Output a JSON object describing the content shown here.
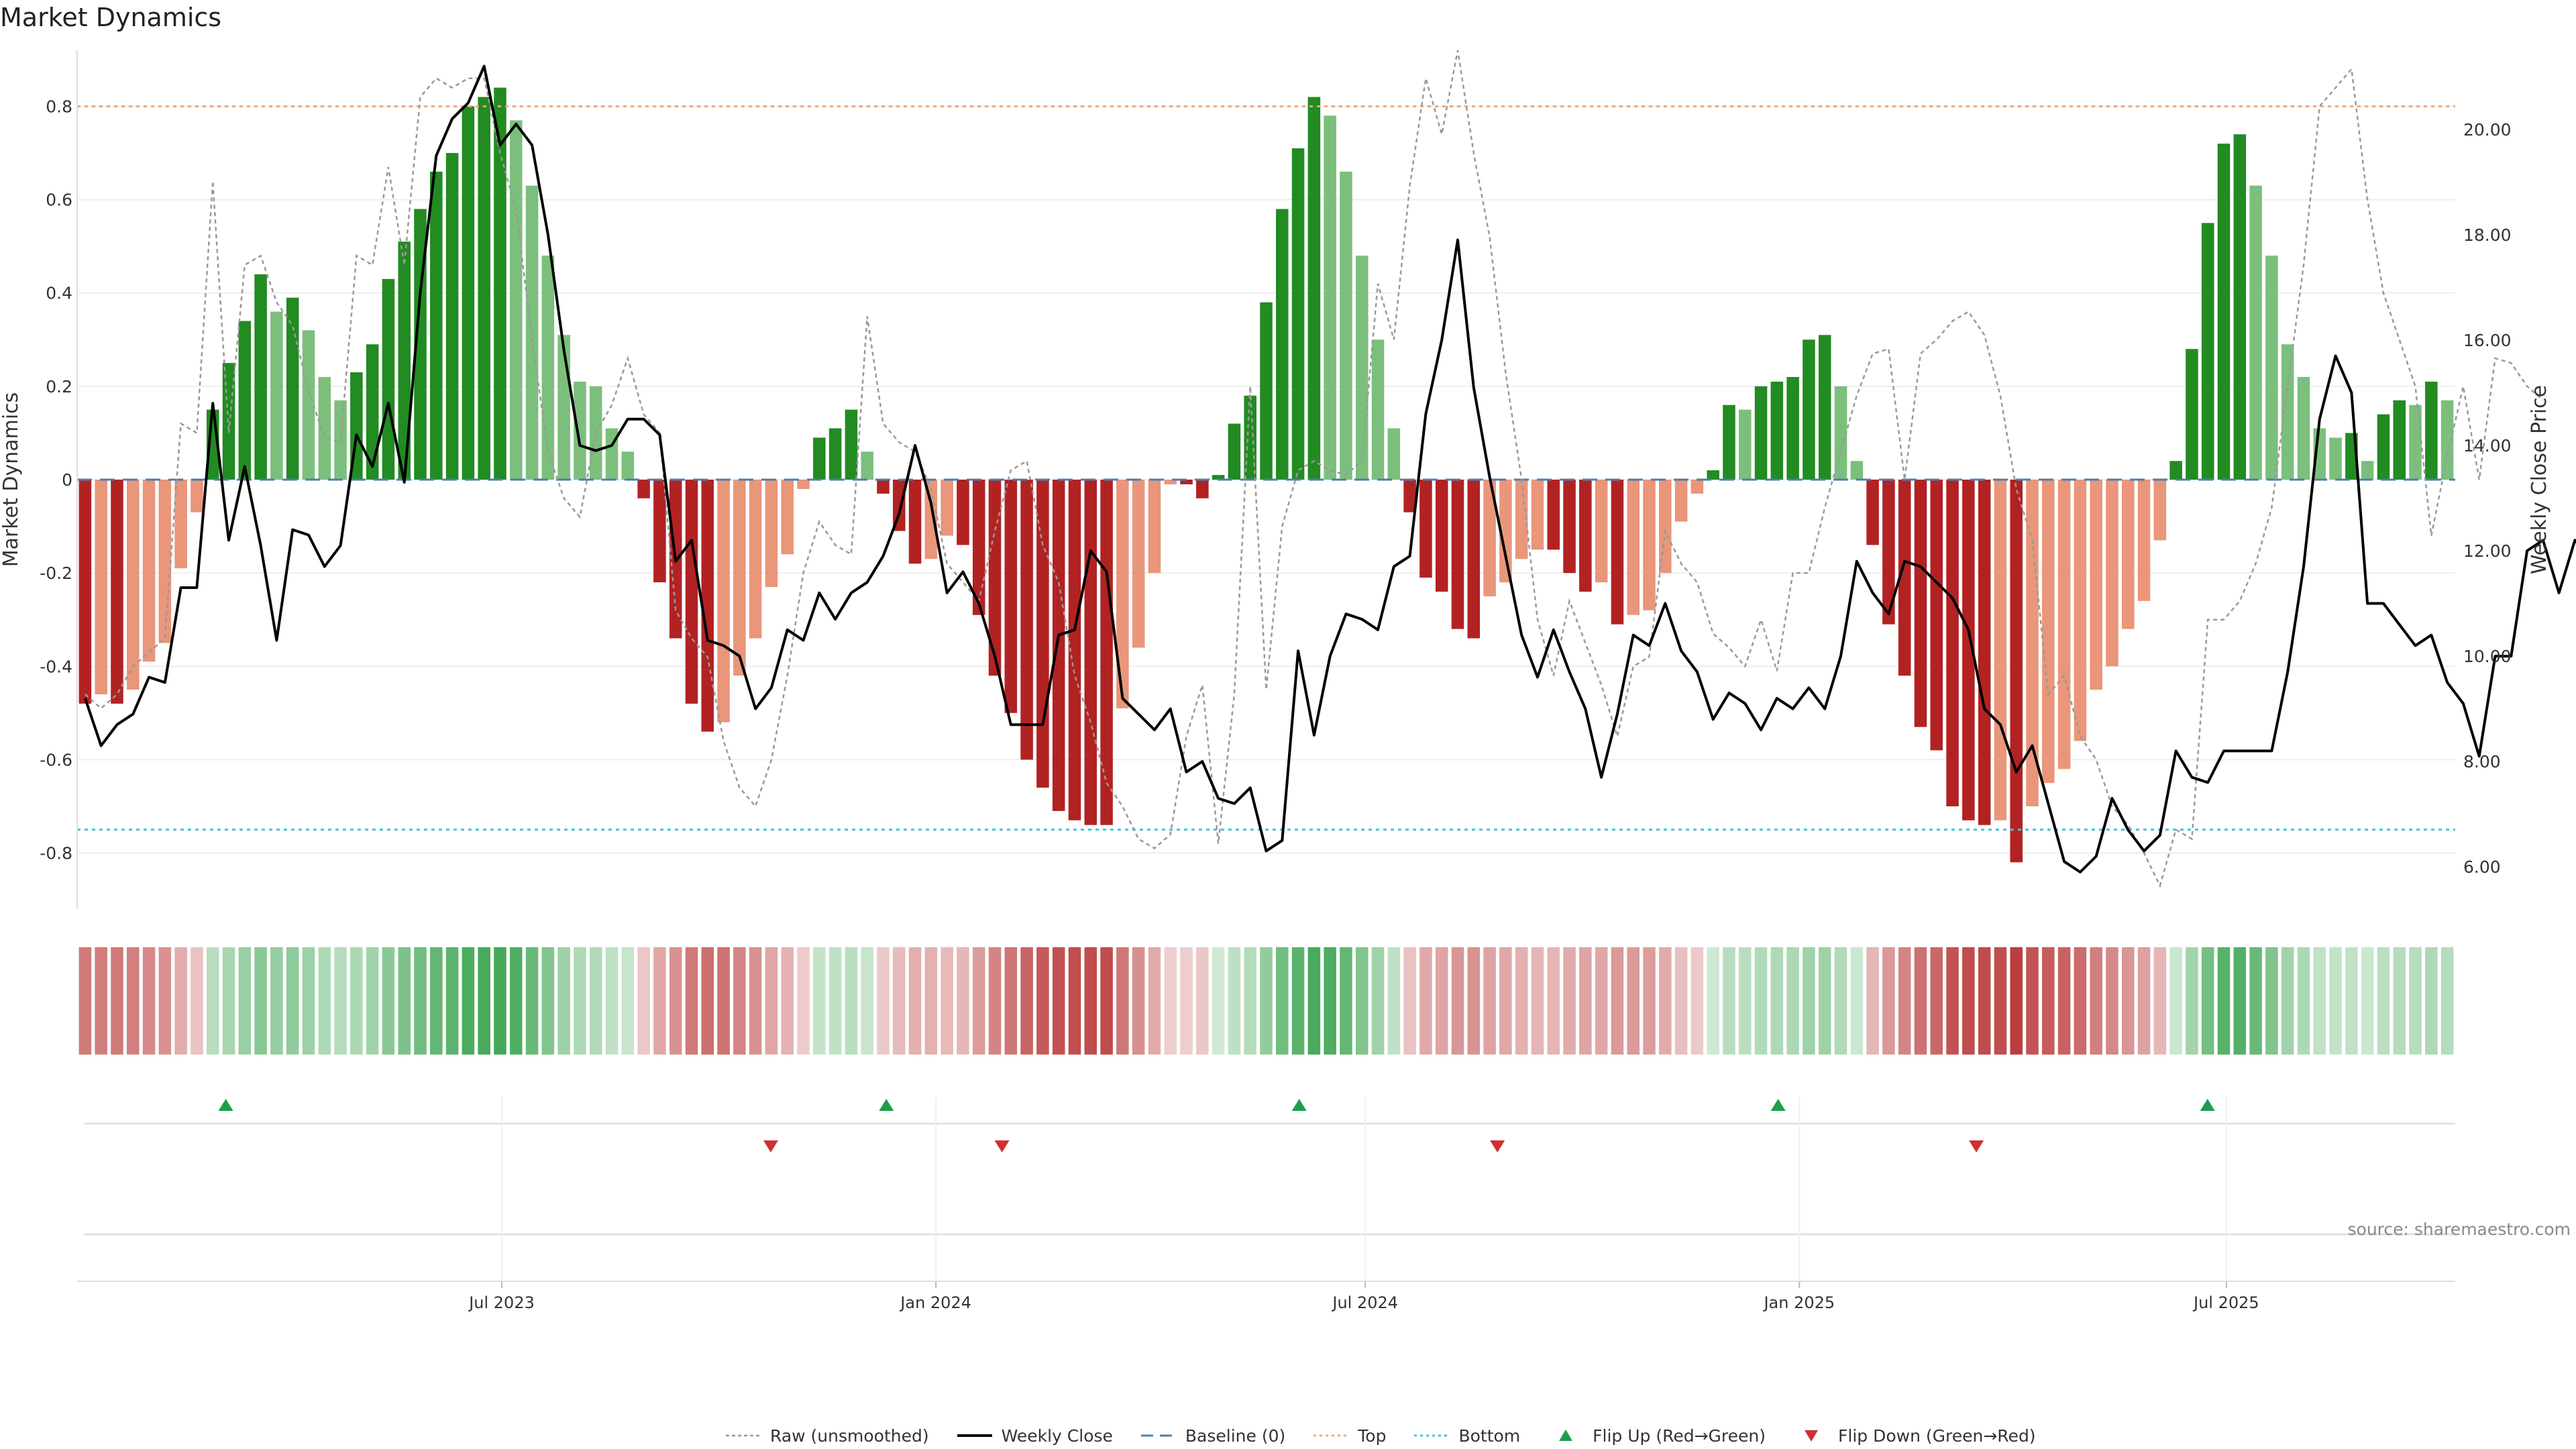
{
  "chart_data": {
    "type": "bar",
    "title": "Market Dynamics",
    "ylabel": "Market Dynamics",
    "y2label": "Weekly Close Price",
    "source": "source: sharemaestro.com",
    "ylim": [
      -0.92,
      0.92
    ],
    "y2lim": [
      5.2,
      21.5
    ],
    "yticks": [
      -0.8,
      -0.6,
      -0.4,
      -0.2,
      0,
      0.2,
      0.4,
      0.6,
      0.8
    ],
    "y2ticks": [
      6.0,
      8.0,
      10.0,
      12.0,
      14.0,
      16.0,
      18.0,
      20.0
    ],
    "x_start": "2023-01-02",
    "x_end": "2025-10-06",
    "xticks": [
      {
        "date": "2023-07-01",
        "label": "Jul 2023"
      },
      {
        "date": "2024-01-01",
        "label": "Jan 2024"
      },
      {
        "date": "2024-07-01",
        "label": "Jul 2024"
      },
      {
        "date": "2025-01-01",
        "label": "Jan 2025"
      },
      {
        "date": "2025-07-01",
        "label": "Jul 2025"
      }
    ],
    "top_line": 0.8,
    "bottom_line": -0.75,
    "baseline": 0,
    "series": [
      {
        "name": "Weekly Close",
        "values": [
          9.2,
          8.3,
          8.7,
          8.9,
          9.6,
          9.5,
          11.3,
          11.3,
          14.8,
          12.2,
          13.6,
          12.1,
          10.3,
          12.4,
          12.3,
          11.7,
          12.1,
          14.2,
          13.6,
          14.8,
          13.3,
          16.9,
          19.5,
          20.2,
          20.5,
          21.2,
          19.7,
          20.1,
          19.7,
          18.0,
          15.8,
          14.0,
          13.9,
          14.0,
          14.5,
          14.5,
          14.2,
          11.8,
          12.2,
          10.3,
          10.2,
          10.0,
          9.0,
          9.4,
          10.5,
          10.3,
          11.2,
          10.7,
          11.2,
          11.4,
          11.9,
          12.7,
          14.0,
          12.9,
          11.2,
          11.6,
          11.0,
          10.0,
          8.7,
          8.7,
          8.7,
          10.4,
          10.5,
          12.0,
          11.6,
          9.2,
          8.9,
          8.6,
          9.0,
          7.8,
          8.0,
          7.3,
          7.2,
          7.5,
          6.3,
          6.5,
          10.1,
          8.5,
          10.0,
          10.8,
          10.7,
          10.5,
          11.7,
          11.9,
          14.6,
          16.0,
          17.9,
          15.1,
          13.4,
          11.9,
          10.4,
          9.6,
          10.5,
          9.7,
          9.0,
          7.7,
          8.9,
          10.4,
          10.2,
          11.0,
          10.1,
          9.7,
          8.8,
          9.3,
          9.1,
          8.6,
          9.2,
          9.0,
          9.4,
          9.0,
          10.0,
          11.8,
          11.2,
          10.8,
          11.8,
          11.7,
          11.4,
          11.1,
          10.5,
          9.0,
          8.7,
          7.8,
          8.3,
          7.2,
          6.1,
          5.9,
          6.2,
          7.3,
          6.7,
          6.3,
          6.6,
          8.2,
          7.7,
          7.6,
          8.2,
          8.2,
          8.2,
          8.2,
          9.7,
          11.7,
          14.5,
          15.7,
          15.0,
          11.0,
          11.0,
          10.6,
          10.2,
          10.4,
          9.5,
          9.1,
          8.1,
          10.0,
          10.0,
          12.0,
          12.2,
          11.2,
          12.2,
          11.9
        ]
      },
      {
        "name": "Raw (unsmoothed)",
        "values": [
          -0.46,
          -0.49,
          -0.46,
          -0.4,
          -0.37,
          -0.34,
          0.12,
          0.1,
          0.64,
          0.1,
          0.46,
          0.48,
          0.38,
          0.33,
          0.19,
          0.09,
          0.08,
          0.48,
          0.46,
          0.67,
          0.46,
          0.82,
          0.86,
          0.84,
          0.86,
          0.86,
          0.7,
          0.58,
          0.3,
          0.06,
          -0.04,
          -0.08,
          0.1,
          0.16,
          0.26,
          0.14,
          0.1,
          -0.28,
          -0.34,
          -0.38,
          -0.56,
          -0.66,
          -0.7,
          -0.6,
          -0.42,
          -0.2,
          -0.09,
          -0.14,
          -0.16,
          0.35,
          0.12,
          0.08,
          0.06,
          -0.02,
          -0.18,
          -0.22,
          -0.26,
          -0.11,
          0.02,
          0.04,
          -0.14,
          -0.22,
          -0.42,
          -0.52,
          -0.65,
          -0.7,
          -0.77,
          -0.79,
          -0.76,
          -0.55,
          -0.44,
          -0.78,
          -0.46,
          0.2,
          -0.45,
          -0.1,
          0.02,
          0.04,
          0.02,
          0.01,
          0.04,
          0.42,
          0.3,
          0.63,
          0.86,
          0.74,
          0.92,
          0.7,
          0.52,
          0.23,
          0.0,
          -0.3,
          -0.42,
          -0.26,
          -0.35,
          -0.44,
          -0.55,
          -0.4,
          -0.38,
          -0.11,
          -0.18,
          -0.22,
          -0.33,
          -0.36,
          -0.4,
          -0.3,
          -0.41,
          -0.2,
          -0.2,
          -0.06,
          0.06,
          0.18,
          0.27,
          0.28,
          0.0,
          0.27,
          0.3,
          0.34,
          0.36,
          0.31,
          0.18,
          -0.02,
          -0.13,
          -0.46,
          -0.42,
          -0.55,
          -0.6,
          -0.7,
          -0.74,
          -0.8,
          -0.87,
          -0.75,
          -0.77,
          -0.3,
          -0.3,
          -0.26,
          -0.18,
          -0.06,
          0.2,
          0.46,
          0.8,
          0.84,
          0.88,
          0.6,
          0.4,
          0.3,
          0.2,
          -0.12,
          0.05,
          0.2,
          0.0,
          0.26,
          0.25,
          0.2,
          0.17
        ]
      },
      {
        "name": "Market Dynamics",
        "values": [
          -0.48,
          -0.46,
          -0.48,
          -0.45,
          -0.39,
          -0.35,
          -0.19,
          -0.07,
          0.15,
          0.25,
          0.34,
          0.44,
          0.36,
          0.39,
          0.32,
          0.22,
          0.17,
          0.23,
          0.29,
          0.43,
          0.51,
          0.58,
          0.66,
          0.7,
          0.8,
          0.82,
          0.84,
          0.77,
          0.63,
          0.48,
          0.31,
          0.21,
          0.2,
          0.11,
          0.06,
          -0.04,
          -0.22,
          -0.34,
          -0.48,
          -0.54,
          -0.52,
          -0.42,
          -0.34,
          -0.23,
          -0.16,
          -0.02,
          0.09,
          0.11,
          0.15,
          0.06,
          -0.03,
          -0.11,
          -0.18,
          -0.17,
          -0.12,
          -0.14,
          -0.29,
          -0.42,
          -0.5,
          -0.6,
          -0.66,
          -0.71,
          -0.73,
          -0.74,
          -0.74,
          -0.49,
          -0.36,
          -0.2,
          -0.01,
          -0.01,
          -0.04,
          0.01,
          0.12,
          0.18,
          0.38,
          0.58,
          0.71,
          0.82,
          0.78,
          0.66,
          0.48,
          0.3,
          0.11,
          -0.07,
          -0.21,
          -0.24,
          -0.32,
          -0.34,
          -0.25,
          -0.22,
          -0.17,
          -0.15,
          -0.15,
          -0.2,
          -0.24,
          -0.22,
          -0.31,
          -0.29,
          -0.28,
          -0.2,
          -0.09,
          -0.03,
          0.02,
          0.16,
          0.15,
          0.2,
          0.21,
          0.22,
          0.3,
          0.31,
          0.2,
          0.04,
          -0.14,
          -0.31,
          -0.42,
          -0.53,
          -0.58,
          -0.7,
          -0.73,
          -0.74,
          -0.73,
          -0.82,
          -0.7,
          -0.65,
          -0.62,
          -0.56,
          -0.45,
          -0.4,
          -0.32,
          -0.26,
          -0.13,
          0.04,
          0.28,
          0.55,
          0.72,
          0.74,
          0.63,
          0.48,
          0.29,
          0.22,
          0.11,
          0.09,
          0.1,
          0.04,
          0.14,
          0.17,
          0.16,
          0.21,
          0.17
        ]
      }
    ],
    "flips_up": [
      "2023-03-06",
      "2023-12-11",
      "2024-06-03",
      "2024-12-23",
      "2025-06-23"
    ],
    "flips_down": [
      "2023-10-23",
      "2024-01-29",
      "2024-08-26",
      "2025-03-17"
    ],
    "colors": {
      "up_strong": "#228B22",
      "up_weak": "#7CBF7C",
      "down_strong": "#B22222",
      "down_weak": "#E9967A",
      "raw": "#999999",
      "close": "#000000",
      "baseline": "#4A7FB0",
      "top": "#F0A878",
      "bottom": "#40C4D8",
      "grid": "#eeeeee"
    }
  },
  "legend": [
    {
      "key": "raw",
      "label": "Raw (unsmoothed)"
    },
    {
      "key": "close",
      "label": "Weekly Close"
    },
    {
      "key": "baseline",
      "label": "Baseline (0)"
    },
    {
      "key": "top",
      "label": "Top"
    },
    {
      "key": "bottom",
      "label": "Bottom"
    },
    {
      "key": "flip_up",
      "label": "Flip Up (Red→Green)"
    },
    {
      "key": "flip_down",
      "label": "Flip Down (Green→Red)"
    }
  ]
}
